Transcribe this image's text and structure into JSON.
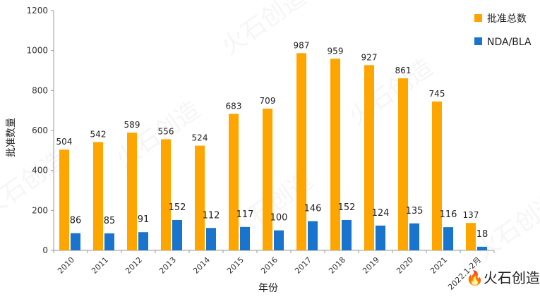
{
  "chart_data": {
    "type": "bar",
    "title": "",
    "xlabel": "年份",
    "ylabel": "批准数量",
    "ylim": [
      0,
      1200
    ],
    "yticks": [
      0,
      200,
      400,
      600,
      800,
      1000,
      1200
    ],
    "categories": [
      "2010",
      "2011",
      "2012",
      "2013",
      "2014",
      "2015",
      "2016",
      "2017",
      "2018",
      "2019",
      "2020",
      "2021",
      "2022.1-2月"
    ],
    "series": [
      {
        "name": "批准总数",
        "color": "#FFA500",
        "values": [
          504,
          542,
          589,
          556,
          524,
          683,
          709,
          987,
          959,
          927,
          861,
          745,
          137
        ]
      },
      {
        "name": "NDA/BLA",
        "color": "#1874CD",
        "values": [
          86,
          85,
          91,
          152,
          112,
          117,
          100,
          146,
          152,
          124,
          135,
          116,
          18
        ]
      }
    ],
    "legend_position": "top-right",
    "grid": false
  },
  "watermark": {
    "text": "火石创造",
    "icon": "flame-logo-icon"
  }
}
